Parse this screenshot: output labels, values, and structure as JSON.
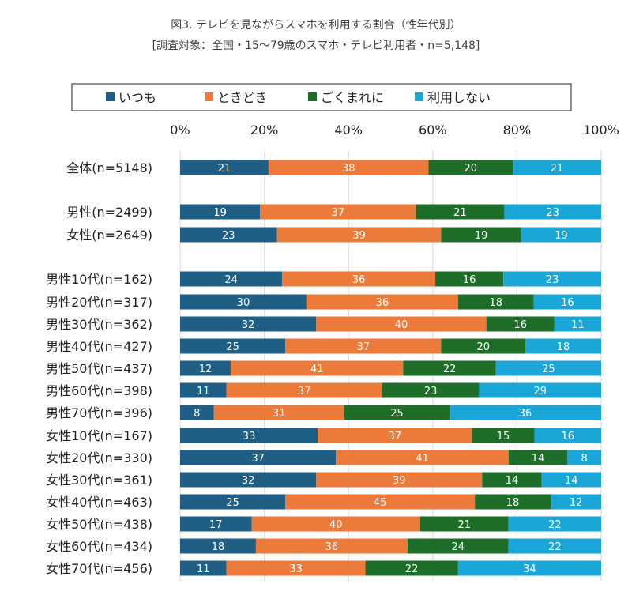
{
  "chart_data": {
    "type": "bar",
    "orientation": "horizontal",
    "stacked": true,
    "percent": true,
    "title": "図3. テレビを見ながらスマホを利用する割合（性年代別）",
    "subtitle": "[調査対象：全国・15～79歳のスマホ・テレビ利用者・n=5,148]",
    "xlim": [
      0,
      100
    ],
    "x_ticks": [
      "0%",
      "20%",
      "40%",
      "60%",
      "80%",
      "100%"
    ],
    "grid": true,
    "legend_position": "top",
    "categories": [
      "全体(n=5148)",
      "男性(n=2499)",
      "女性(n=2649)",
      "男性10代(n=162)",
      "男性20代(n=317)",
      "男性30代(n=362)",
      "男性40代(n=427)",
      "男性50代(n=437)",
      "男性60代(n=398)",
      "男性70代(n=396)",
      "女性10代(n=167)",
      "女性20代(n=330)",
      "女性30代(n=361)",
      "女性40代(n=463)",
      "女性50代(n=438)",
      "女性60代(n=434)",
      "女性70代(n=456)"
    ],
    "series": [
      {
        "name": "いつも",
        "color": "#1f5f86",
        "values": [
          21,
          19,
          23,
          24,
          30,
          32,
          25,
          12,
          11,
          8,
          33,
          37,
          32,
          25,
          17,
          18,
          11
        ]
      },
      {
        "name": "ときどき",
        "color": "#ec7a3a",
        "values": [
          38,
          37,
          39,
          36,
          36,
          40,
          37,
          41,
          37,
          31,
          37,
          41,
          39,
          45,
          40,
          36,
          33
        ]
      },
      {
        "name": "ごくまれに",
        "color": "#1e6e2a",
        "values": [
          20,
          21,
          19,
          16,
          18,
          16,
          20,
          22,
          23,
          25,
          15,
          14,
          14,
          18,
          21,
          24,
          22
        ]
      },
      {
        "name": "利用しない",
        "color": "#1aa7d8",
        "values": [
          21,
          23,
          19,
          23,
          16,
          11,
          18,
          25,
          29,
          36,
          16,
          8,
          14,
          12,
          22,
          22,
          34
        ]
      }
    ]
  }
}
